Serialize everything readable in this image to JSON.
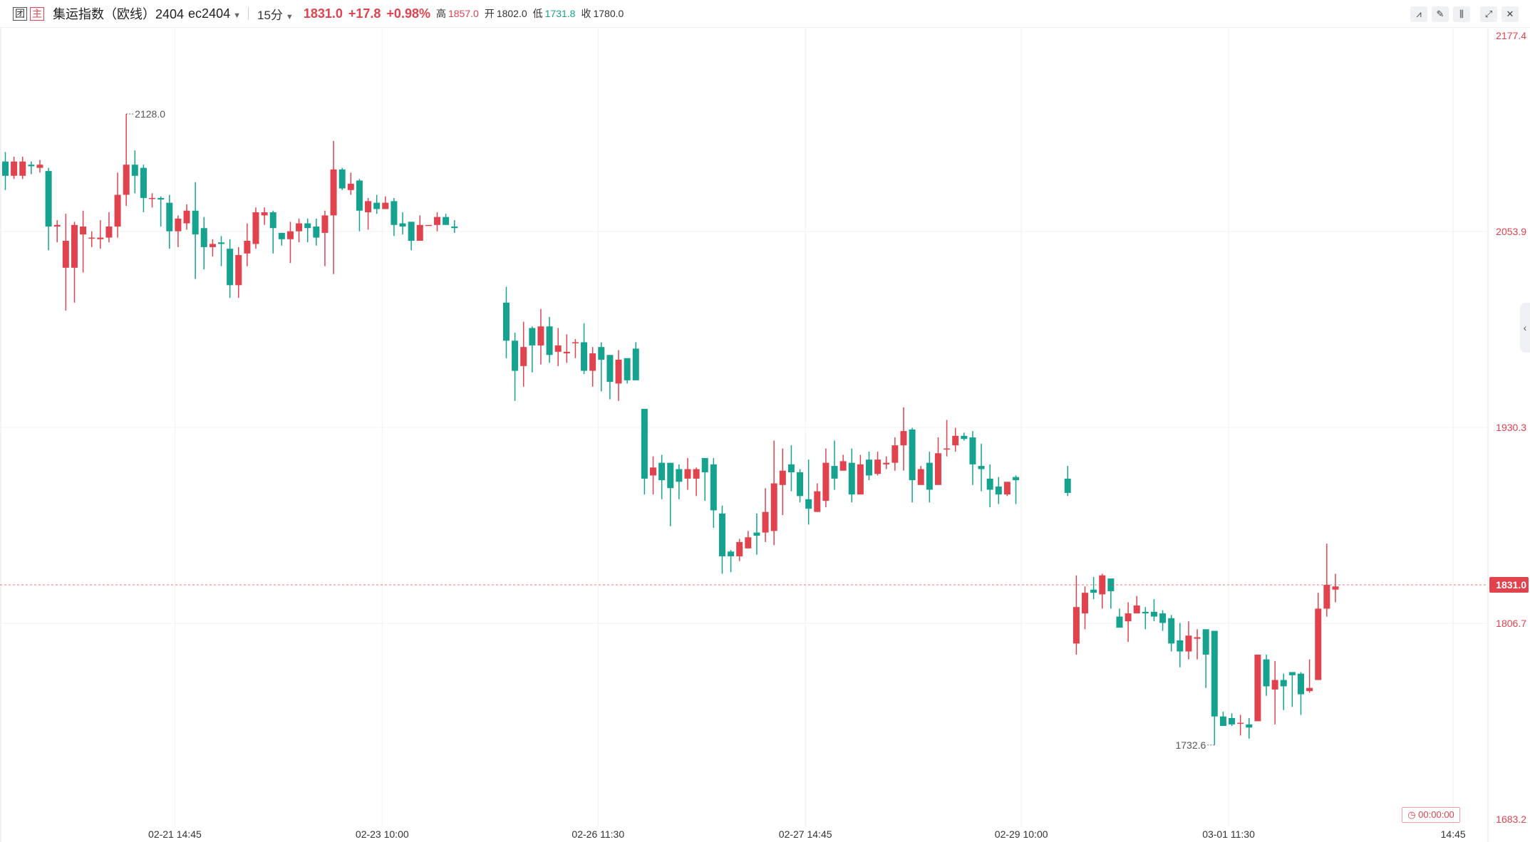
{
  "header": {
    "badge1": "团",
    "badge2": "主",
    "title": "集运指数（欧线）2404",
    "code": "ec2404",
    "period": "15分",
    "price": "1831.0",
    "change": "+17.8",
    "change_pct": "+0.98%",
    "high_label": "高",
    "high": "1857.0",
    "open_label": "开",
    "open": "1802.0",
    "low_label": "低",
    "low": "1731.8",
    "close_label": "收",
    "close": "1780.0"
  },
  "toolbar": {
    "icons": [
      "line-draw-icon",
      "pen-icon",
      "candle-type-icon",
      "fullscreen-icon",
      "close-icon"
    ]
  },
  "timer": "00:00:00",
  "colors": {
    "up": "#e0424e",
    "down": "#15a38f",
    "grid": "#f0f0f0",
    "axis": "#333333"
  },
  "chart_data": {
    "type": "candlestick",
    "title": "",
    "x_tick_labels": [
      "02-21 14:45",
      "02-23 10:00",
      "02-26 11:30",
      "02-27 14:45",
      "02-29 10:00",
      "03-01 11:30",
      "14:45"
    ],
    "y_tick_labels": [
      "2177.4",
      "2053.9",
      "1930.3",
      "1806.7",
      "1683.2"
    ],
    "ylim": [
      1683.2,
      2177.4
    ],
    "last_price": 1831.0,
    "max_label": "2128.0",
    "min_label": "1732.6",
    "grid": true,
    "candles": [
      [
        2098,
        2089,
        2104,
        2080
      ],
      [
        2089,
        2098,
        2101,
        2087
      ],
      [
        2089,
        2098,
        2101,
        2087
      ],
      [
        2096,
        2095,
        2098,
        2090
      ],
      [
        2094,
        2096,
        2099,
        2091
      ],
      [
        2092,
        2057,
        2094,
        2042
      ],
      [
        2057,
        2058,
        2061,
        2047
      ],
      [
        2031,
        2048,
        2065,
        2004
      ],
      [
        2031,
        2058,
        2060,
        2009
      ],
      [
        2052,
        2057,
        2067,
        2028
      ],
      [
        2050,
        2050,
        2054,
        2044
      ],
      [
        2049,
        2050,
        2061,
        2043
      ],
      [
        2050,
        2057,
        2066,
        2047
      ],
      [
        2057,
        2077,
        2091,
        2050
      ],
      [
        2077,
        2096,
        2128,
        2070
      ],
      [
        2096,
        2089,
        2105,
        2078
      ],
      [
        2094,
        2075,
        2096,
        2066
      ],
      [
        2075,
        2075,
        2078,
        2069
      ],
      [
        2075,
        2074,
        2076,
        2057
      ],
      [
        2072,
        2054,
        2077,
        2043
      ],
      [
        2054,
        2062,
        2064,
        2044
      ],
      [
        2059,
        2067,
        2071,
        2055
      ],
      [
        2067,
        2052,
        2085,
        2024
      ],
      [
        2056,
        2044,
        2063,
        2030
      ],
      [
        2044,
        2046,
        2049,
        2038
      ],
      [
        2047,
        2046,
        2051,
        2032
      ],
      [
        2043,
        2020,
        2049,
        2012
      ],
      [
        2020,
        2039,
        2044,
        2012
      ],
      [
        2040,
        2048,
        2059,
        2032
      ],
      [
        2046,
        2066,
        2069,
        2043
      ],
      [
        2064,
        2066,
        2069,
        2058
      ],
      [
        2066,
        2056,
        2067,
        2040
      ],
      [
        2053,
        2049,
        2052,
        2045
      ],
      [
        2049,
        2054,
        2060,
        2034
      ],
      [
        2054,
        2059,
        2062,
        2047
      ],
      [
        2059,
        2056,
        2062,
        2047
      ],
      [
        2057,
        2050,
        2062,
        2045
      ],
      [
        2053,
        2064,
        2067,
        2032
      ],
      [
        2064,
        2093,
        2111,
        2027
      ],
      [
        2093,
        2081,
        2094,
        2080
      ],
      [
        2080,
        2084,
        2091,
        2077
      ],
      [
        2086,
        2067,
        2087,
        2054
      ],
      [
        2066,
        2073,
        2075,
        2055
      ],
      [
        2072,
        2068,
        2077,
        2065
      ],
      [
        2068,
        2072,
        2076,
        2068
      ],
      [
        2073,
        2058,
        2075,
        2051
      ],
      [
        2059,
        2057,
        2066,
        2052
      ],
      [
        2060,
        2048,
        2059,
        2042
      ],
      [
        2048,
        2058,
        2064,
        2053
      ],
      [
        2058,
        2058,
        2058,
        2058
      ],
      [
        2058,
        2063,
        2066,
        2054
      ],
      [
        2063,
        2058,
        2065,
        2058
      ],
      [
        2057,
        2056,
        2061,
        2053
      ],
      [
        2009,
        1985,
        2019,
        1974
      ],
      [
        1985,
        1966,
        1990,
        1947
      ],
      [
        1969,
        1981,
        1997,
        1956
      ],
      [
        1993,
        1982,
        1994,
        1965
      ],
      [
        1982,
        1994,
        2005,
        1970
      ],
      [
        1994,
        1976,
        2000,
        1971
      ],
      [
        1978,
        1982,
        1993,
        1969
      ],
      [
        1977,
        1978,
        1989,
        1971
      ],
      [
        1984,
        1984,
        1986,
        1974
      ],
      [
        1984,
        1966,
        1996,
        1964
      ],
      [
        1966,
        1977,
        1981,
        1956
      ],
      [
        1981,
        1973,
        1984,
        1953
      ],
      [
        1976,
        1959,
        1968,
        1948
      ],
      [
        1958,
        1973,
        1979,
        1947
      ],
      [
        1974,
        1960,
        1971,
        1958
      ],
      [
        1980,
        1960,
        1984,
        1963
      ],
      [
        1942,
        1898,
        1942,
        1888
      ],
      [
        1900,
        1905,
        1912,
        1888
      ],
      [
        1908,
        1897,
        1913,
        1885
      ],
      [
        1908,
        1892,
        1904,
        1868
      ],
      [
        1904,
        1896,
        1907,
        1885
      ],
      [
        1898,
        1904,
        1911,
        1891
      ],
      [
        1898,
        1904,
        1905,
        1887
      ],
      [
        1911,
        1902,
        1909,
        1884
      ],
      [
        1907,
        1878,
        1911,
        1867
      ],
      [
        1876,
        1849,
        1881,
        1838
      ],
      [
        1852,
        1849,
        1853,
        1839
      ],
      [
        1849,
        1858,
        1860,
        1846
      ],
      [
        1854,
        1861,
        1865,
        1857
      ],
      [
        1864,
        1862,
        1876,
        1850
      ],
      [
        1864,
        1877,
        1892,
        1858
      ],
      [
        1865,
        1895,
        1922,
        1856
      ],
      [
        1894,
        1903,
        1917,
        1875
      ],
      [
        1907,
        1902,
        1919,
        1890
      ],
      [
        1902,
        1887,
        1904,
        1883
      ],
      [
        1885,
        1879,
        1910,
        1869
      ],
      [
        1877,
        1890,
        1895,
        1877
      ],
      [
        1884,
        1908,
        1917,
        1880
      ],
      [
        1906,
        1898,
        1922,
        1891
      ],
      [
        1903,
        1909,
        1913,
        1904
      ],
      [
        1908,
        1888,
        1917,
        1883
      ],
      [
        1888,
        1907,
        1913,
        1890
      ],
      [
        1910,
        1900,
        1915,
        1897
      ],
      [
        1901,
        1910,
        1915,
        1900
      ],
      [
        1907,
        1908,
        1912,
        1904
      ],
      [
        1908,
        1919,
        1924,
        1903
      ],
      [
        1919,
        1928,
        1943,
        1903
      ],
      [
        1929,
        1897,
        1930,
        1883
      ],
      [
        1894,
        1904,
        1906,
        1895
      ],
      [
        1908,
        1891,
        1915,
        1883
      ],
      [
        1894,
        1914,
        1924,
        1895
      ],
      [
        1917,
        1917,
        1935,
        1912
      ],
      [
        1919,
        1925,
        1930,
        1915
      ],
      [
        1925,
        1923,
        1927,
        1922
      ],
      [
        1924,
        1907,
        1928,
        1894
      ],
      [
        1906,
        1904,
        1920,
        1890
      ],
      [
        1898,
        1891,
        1907,
        1880
      ],
      [
        1893,
        1888,
        1899,
        1882
      ],
      [
        1888,
        1896,
        1893,
        1887
      ],
      [
        1899,
        1897,
        1900,
        1882
      ],
      [
        1898,
        1889,
        1906,
        1887
      ],
      [
        1794,
        1817,
        1837,
        1787
      ],
      [
        1813,
        1826,
        1830,
        1803
      ],
      [
        1828,
        1826,
        1836,
        1822
      ],
      [
        1825,
        1837,
        1838,
        1816
      ],
      [
        1835,
        1827,
        1832,
        1816
      ],
      [
        1811,
        1804,
        1816,
        1810
      ],
      [
        1808,
        1813,
        1820,
        1795
      ],
      [
        1813,
        1818,
        1824,
        1818
      ],
      [
        1814,
        1813,
        1817,
        1803
      ],
      [
        1814,
        1811,
        1822,
        1808
      ],
      [
        1813,
        1807,
        1815,
        1802
      ],
      [
        1810,
        1794,
        1812,
        1789
      ],
      [
        1796,
        1789,
        1807,
        1779
      ],
      [
        1789,
        1799,
        1808,
        1784
      ],
      [
        1797,
        1798,
        1803,
        1784
      ],
      [
        1803,
        1787,
        1803,
        1766
      ],
      [
        1802,
        1748,
        1801,
        1730
      ],
      [
        1748,
        1742,
        1751,
        1744
      ],
      [
        1747,
        1743,
        1750,
        1742
      ],
      [
        1744,
        1744,
        1749,
        1736
      ],
      [
        1743,
        1741,
        1747,
        1734
      ],
      [
        1745,
        1787,
        1787,
        1745
      ],
      [
        1784,
        1767,
        1787,
        1761
      ],
      [
        1765,
        1771,
        1783,
        1743
      ],
      [
        1771,
        1767,
        1775,
        1752
      ],
      [
        1776,
        1774,
        1774,
        1754
      ],
      [
        1775,
        1762,
        1776,
        1749
      ],
      [
        1764,
        1766,
        1784,
        1763
      ],
      [
        1771,
        1816,
        1826,
        1771
      ],
      [
        1816,
        1831,
        1857,
        1811
      ],
      [
        1828,
        1830,
        1838,
        1820
      ]
    ]
  }
}
